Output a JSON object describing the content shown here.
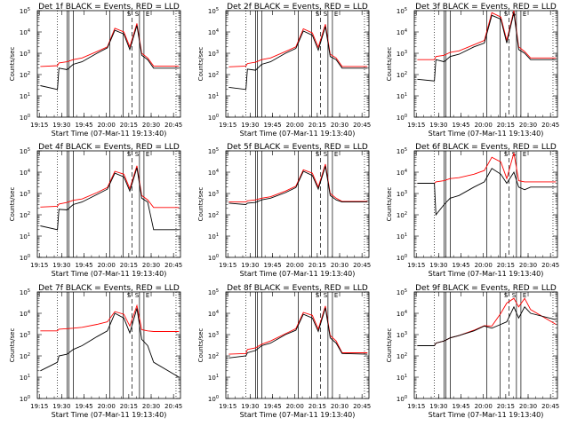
{
  "chart_data": {
    "type": "line",
    "x_tick_labels": [
      "19:15",
      "19:30",
      "19:45",
      "20:00",
      "20:15",
      "20:30",
      "20:45"
    ],
    "y_tick_exponents": [
      0,
      1,
      2,
      3,
      4,
      5
    ],
    "xlabel": "Start Time (07-Mar-11 19:13:40)",
    "ylabel": "Counts/sec",
    "yscale": "log",
    "ylim": [
      1,
      100000
    ],
    "xlim_minutes": [
      0,
      96
    ],
    "interval_markers": {
      "dotted_minutes": [
        13.5,
        93
      ],
      "solid_minutes": [
        20,
        21.2,
        24.2,
        48.5,
        57.5,
        68.5,
        71.5
      ],
      "dashed_minutes": [
        63.5
      ],
      "top_tick_labels": [
        "S",
        "S",
        "E"
      ],
      "top_tick_minutes": [
        61.5,
        66.8,
        74
      ]
    },
    "series_colors": {
      "events": "#000000",
      "lld": "#ff0000"
    },
    "panels": [
      {
        "title": "Det 1f BLACK = Events, RED = LLD",
        "x_minutes": [
          2,
          13.5,
          14.5,
          20,
          24,
          30,
          40,
          47,
          52,
          58,
          62,
          66.8,
          70,
          74,
          78,
          95
        ],
        "events": [
          30.0,
          20.0,
          200.0,
          170.0,
          300.0,
          400.0,
          1000.0,
          1800.0,
          12000.0,
          8000.0,
          1500.0,
          20000.0,
          800.0,
          500.0,
          200.0,
          200.0
        ],
        "lld": [
          240.0,
          260.0,
          350.0,
          400.0,
          500.0,
          600.0,
          1200.0,
          2000.0,
          15000.0,
          10000.0,
          2000.0,
          25000.0,
          1000.0,
          600.0,
          250.0,
          250.0
        ]
      },
      {
        "title": "Det 2f BLACK = Events, RED = LLD",
        "x_minutes": [
          2,
          13.5,
          14.5,
          20,
          24,
          30,
          40,
          47,
          52,
          58,
          62,
          66.8,
          70,
          74,
          78,
          95
        ],
        "events": [
          25.0,
          20.0,
          180.0,
          160.0,
          300.0,
          400.0,
          1000.0,
          1700.0,
          11000.0,
          7000.0,
          1400.0,
          18000.0,
          700.0,
          500.0,
          200.0,
          200.0
        ],
        "lld": [
          230.0,
          250.0,
          330.0,
          380.0,
          500.0,
          600.0,
          1200.0,
          2000.0,
          14000.0,
          9000.0,
          1900.0,
          23000.0,
          900.0,
          600.0,
          240.0,
          240.0
        ]
      },
      {
        "title": "Det 3f BLACK = Events, RED = LLD",
        "x_minutes": [
          2,
          13.5,
          14.5,
          20,
          24,
          30,
          40,
          47,
          52,
          58,
          62,
          66.8,
          70,
          74,
          78,
          95
        ],
        "events": [
          60.0,
          50.0,
          500.0,
          400.0,
          700.0,
          900.0,
          2000.0,
          3000.0,
          60000.0,
          40000.0,
          3000.0,
          80000.0,
          1500.0,
          1000.0,
          500.0,
          500.0
        ],
        "lld": [
          500.0,
          500.0,
          700.0,
          800.0,
          1100.0,
          1300.0,
          2500.0,
          4000.0,
          80000.0,
          50000.0,
          4000.0,
          100000.0,
          2000.0,
          1200.0,
          600.0,
          600.0
        ]
      },
      {
        "title": "Det 4f BLACK = Events, RED = LLD",
        "x_minutes": [
          2,
          13.5,
          14.5,
          20,
          24,
          30,
          40,
          47,
          52,
          58,
          62,
          66.8,
          70,
          74,
          78,
          95
        ],
        "events": [
          30.0,
          20.0,
          180.0,
          170.0,
          300.0,
          400.0,
          900.0,
          1600.0,
          9000.0,
          6000.0,
          1300.0,
          16000.0,
          600.0,
          400.0,
          20.0,
          20.0
        ],
        "lld": [
          230.0,
          250.0,
          320.0,
          380.0,
          480.0,
          550.0,
          1100.0,
          1900.0,
          11000.0,
          8000.0,
          1700.0,
          20000.0,
          800.0,
          500.0,
          220.0,
          220.0
        ]
      },
      {
        "title": "Det 5f BLACK = Events, RED = LLD",
        "x_minutes": [
          2,
          13.5,
          14.5,
          20,
          24,
          30,
          40,
          47,
          52,
          58,
          62,
          66.8,
          70,
          74,
          78,
          95
        ],
        "events": [
          350.0,
          300.0,
          350.0,
          380.0,
          500.0,
          600.0,
          1100.0,
          1900.0,
          11000.0,
          7000.0,
          1600.0,
          19000.0,
          800.0,
          500.0,
          400.0,
          400.0
        ],
        "lld": [
          400.0,
          400.0,
          450.0,
          500.0,
          600.0,
          700.0,
          1300.0,
          2200.0,
          13000.0,
          9000.0,
          2000.0,
          24000.0,
          1000.0,
          600.0,
          420.0,
          420.0
        ]
      },
      {
        "title": "Det 6f BLACK = Events, RED = LLD",
        "x_minutes": [
          2,
          13.5,
          14.5,
          20,
          24,
          30,
          40,
          47,
          52,
          58,
          62,
          66.8,
          70,
          74,
          78,
          95
        ],
        "events": [
          3000.0,
          3000.0,
          100.0,
          300.0,
          600.0,
          800.0,
          2000.0,
          3500.0,
          15000.0,
          8000.0,
          3000.0,
          10000.0,
          2000.0,
          1500.0,
          2000.0,
          2000.0
        ],
        "lld": [
          3000.0,
          3000.0,
          3500.0,
          4000.0,
          5000.0,
          5500.0,
          8000.0,
          12000.0,
          50000.0,
          30000.0,
          5000.0,
          80000.0,
          4000.0,
          3500.0,
          3500.0,
          3500.0
        ]
      },
      {
        "title": "Det 7f BLACK = Events, RED = LLD",
        "x_minutes": [
          2,
          13.5,
          14.5,
          20,
          24,
          30,
          40,
          47,
          52,
          58,
          62,
          66.8,
          70,
          74,
          78,
          95
        ],
        "events": [
          20.0,
          50.0,
          100.0,
          120.0,
          200.0,
          300.0,
          800.0,
          1500.0,
          10000.0,
          6000.0,
          1200.0,
          17000.0,
          600.0,
          300.0,
          50.0,
          10.0
        ],
        "lld": [
          1500.0,
          1500.0,
          1800.0,
          1900.0,
          2000.0,
          2200.0,
          3000.0,
          4000.0,
          12000.0,
          9000.0,
          2500.0,
          23000.0,
          1700.0,
          1500.0,
          1400.0,
          1400.0
        ]
      },
      {
        "title": "Det 8f BLACK = Events, RED = LLD",
        "x_minutes": [
          2,
          13.5,
          14.5,
          20,
          24,
          30,
          40,
          47,
          52,
          58,
          62,
          66.8,
          70,
          74,
          78,
          95
        ],
        "events": [
          80.0,
          100.0,
          140.0,
          180.0,
          300.0,
          400.0,
          1000.0,
          1600.0,
          9000.0,
          6000.0,
          1400.0,
          18000.0,
          700.0,
          400.0,
          130.0,
          120.0
        ],
        "lld": [
          120.0,
          130.0,
          200.0,
          240.0,
          350.0,
          500.0,
          1100.0,
          1900.0,
          11000.0,
          8000.0,
          1800.0,
          22000.0,
          900.0,
          500.0,
          140.0,
          140.0
        ]
      },
      {
        "title": "Det 9f BLACK = Events, RED = LLD",
        "x_minutes": [
          2,
          13.5,
          14.5,
          20,
          24,
          30,
          40,
          47,
          52,
          58,
          62,
          66.8,
          70,
          74,
          78,
          95
        ],
        "events": [
          300.0,
          300.0,
          400.0,
          500.0,
          700.0,
          900.0,
          1500.0,
          2500.0,
          2000.0,
          3000.0,
          4000.0,
          20000.0,
          6000.0,
          20000.0,
          10000.0,
          5000.0
        ],
        "lld": [
          300.0,
          300.0,
          400.0,
          500.0,
          700.0,
          900.0,
          1600.0,
          2600.0,
          2500.0,
          10000.0,
          30000.0,
          50000.0,
          20000.0,
          50000.0,
          15000.0,
          3000.0
        ]
      }
    ]
  }
}
